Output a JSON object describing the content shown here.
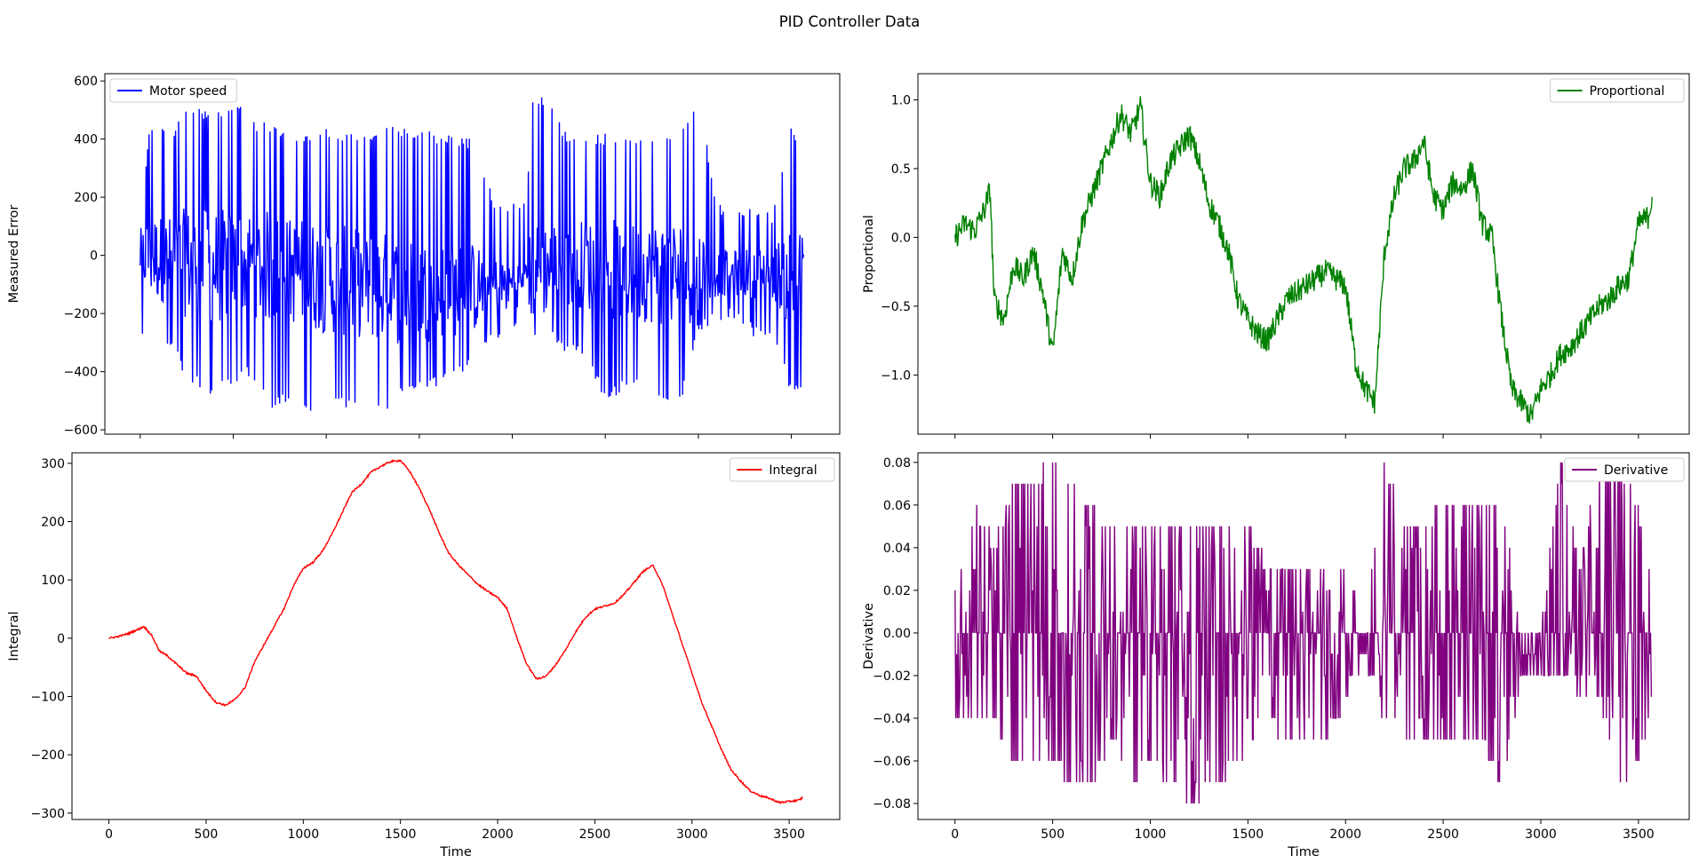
{
  "figure": {
    "title": "PID Controller Data"
  },
  "chart_data": [
    {
      "type": "line",
      "ylabel": "Measured Error",
      "xlabel": "",
      "xlim": [
        -190,
        3760
      ],
      "ylim": [
        -615,
        625
      ],
      "xticks": [
        0,
        500,
        1000,
        1500,
        2000,
        2500,
        3000,
        3500
      ],
      "yticks": [
        -600,
        -400,
        -200,
        0,
        200,
        400,
        600
      ],
      "show_x_tick_labels": false,
      "legend_position": "top-left",
      "series": [
        {
          "name": "Motor speed",
          "color": "#0000ff",
          "x": [
            0,
            50,
            100,
            180,
            250,
            300,
            400,
            500,
            600,
            700,
            800,
            900,
            1000,
            1100,
            1200,
            1300,
            1400,
            1500,
            1600,
            1700,
            1800,
            1900,
            2000,
            2080,
            2100,
            2200,
            2300,
            2400,
            2500,
            2600,
            2700,
            2800,
            2900,
            3000,
            3100,
            3200,
            3300,
            3400,
            3500,
            3570
          ],
          "y": [
            150,
            -300,
            440,
            -330,
            520,
            -450,
            -440,
            540,
            -380,
            -500,
            400,
            -500,
            430,
            -510,
            420,
            -520,
            430,
            -440,
            220,
            -300,
            210,
            -290,
            190,
            -60,
            560,
            80,
            -300,
            410,
            -350,
            420,
            -330,
            400,
            -240,
            -80,
            180,
            -220,
            160,
            -300,
            460,
            -180
          ],
          "env_high": [
            150,
            445,
            440,
            440,
            520,
            510,
            500,
            540,
            470,
            460,
            420,
            410,
            440,
            430,
            420,
            440,
            445,
            440,
            420,
            410,
            400,
            190,
            190,
            180,
            560,
            540,
            410,
            410,
            420,
            420,
            420,
            420,
            420,
            560,
            180,
            175,
            160,
            150,
            470,
            300
          ],
          "env_low": [
            -300,
            -320,
            -320,
            -330,
            -450,
            -450,
            -490,
            -440,
            -420,
            -530,
            -500,
            -560,
            -500,
            -530,
            -510,
            -550,
            -490,
            -460,
            -450,
            -420,
            -380,
            -300,
            -290,
            -60,
            -280,
            -290,
            -340,
            -360,
            -500,
            -470,
            -420,
            -500,
            -520,
            -260,
            -230,
            -220,
            -280,
            -300,
            -480,
            -460
          ],
          "guide_band": [
            [
              0,
              0
            ],
            [
              200,
              -20
            ],
            [
              400,
              -40
            ],
            [
              600,
              -30
            ],
            [
              800,
              -50
            ],
            [
              1000,
              -80
            ],
            [
              1200,
              -100
            ],
            [
              1400,
              -120
            ],
            [
              1600,
              -120
            ],
            [
              1800,
              -110
            ],
            [
              2000,
              -100
            ],
            [
              2100,
              -60
            ],
            [
              2300,
              -20
            ],
            [
              2600,
              -60
            ],
            [
              2800,
              -60
            ],
            [
              3000,
              -60
            ],
            [
              3200,
              -60
            ],
            [
              3400,
              -60
            ],
            [
              3570,
              -80
            ]
          ]
        }
      ]
    },
    {
      "type": "line",
      "ylabel": "Proportional",
      "xlabel": "",
      "xlim": [
        -190,
        3760
      ],
      "ylim": [
        -1.43,
        1.19
      ],
      "xticks": [
        0,
        500,
        1000,
        1500,
        2000,
        2500,
        3000,
        3500
      ],
      "yticks": [
        -1.0,
        -0.5,
        0.0,
        0.5,
        1.0
      ],
      "ytick_labels": [
        "−1.0",
        "−0.5",
        "0.0",
        "0.5",
        "1.0"
      ],
      "show_x_tick_labels": false,
      "legend_position": "top-right",
      "series": [
        {
          "name": "Proportional",
          "color": "#008000",
          "x": [
            0,
            50,
            100,
            150,
            180,
            200,
            250,
            300,
            350,
            400,
            450,
            500,
            550,
            600,
            650,
            700,
            750,
            800,
            850,
            900,
            950,
            1000,
            1050,
            1100,
            1150,
            1200,
            1250,
            1300,
            1350,
            1400,
            1450,
            1500,
            1550,
            1600,
            1650,
            1700,
            1750,
            1800,
            1850,
            1900,
            1950,
            2000,
            2050,
            2100,
            2150,
            2200,
            2250,
            2300,
            2350,
            2400,
            2450,
            2500,
            2550,
            2600,
            2650,
            2700,
            2750,
            2800,
            2850,
            2900,
            2950,
            3000,
            3050,
            3100,
            3150,
            3200,
            3250,
            3300,
            3350,
            3400,
            3450,
            3500,
            3550,
            3570
          ],
          "y": [
            0.0,
            0.1,
            0.05,
            0.2,
            0.35,
            -0.45,
            -0.6,
            -0.2,
            -0.3,
            -0.1,
            -0.4,
            -0.85,
            -0.1,
            -0.3,
            0.1,
            0.3,
            0.5,
            0.7,
            0.9,
            0.75,
            0.95,
            0.4,
            0.3,
            0.55,
            0.65,
            0.75,
            0.55,
            0.25,
            0.1,
            -0.1,
            -0.45,
            -0.6,
            -0.7,
            -0.75,
            -0.6,
            -0.45,
            -0.4,
            -0.35,
            -0.3,
            -0.25,
            -0.3,
            -0.35,
            -0.9,
            -1.1,
            -1.2,
            -0.1,
            0.3,
            0.5,
            0.55,
            0.7,
            0.3,
            0.2,
            0.4,
            0.35,
            0.5,
            0.1,
            0.0,
            -0.6,
            -1.1,
            -1.2,
            -1.3,
            -1.1,
            -1.0,
            -0.85,
            -0.8,
            -0.7,
            -0.6,
            -0.5,
            -0.45,
            -0.35,
            -0.3,
            0.1,
            0.15,
            0.3
          ],
          "noise": 0.09
        }
      ]
    },
    {
      "type": "line",
      "ylabel": "Integral",
      "xlabel": "Time",
      "xlim": [
        -190,
        3760
      ],
      "ylim": [
        -311,
        318
      ],
      "xticks": [
        0,
        500,
        1000,
        1500,
        2000,
        2500,
        3000,
        3500
      ],
      "yticks": [
        -300,
        -200,
        -100,
        0,
        100,
        200,
        300
      ],
      "ytick_labels": [
        "−300",
        "−200",
        "−100",
        "0",
        "100",
        "200",
        "300"
      ],
      "show_x_tick_labels": true,
      "legend_position": "top-right",
      "series": [
        {
          "name": "Integral",
          "color": "#ff0000",
          "x": [
            0,
            50,
            100,
            150,
            180,
            220,
            260,
            300,
            350,
            400,
            450,
            500,
            550,
            600,
            650,
            700,
            750,
            800,
            850,
            900,
            950,
            1000,
            1050,
            1100,
            1150,
            1200,
            1250,
            1300,
            1350,
            1400,
            1450,
            1500,
            1550,
            1600,
            1650,
            1700,
            1750,
            1800,
            1850,
            1900,
            1950,
            2000,
            2050,
            2100,
            2150,
            2200,
            2250,
            2300,
            2350,
            2400,
            2450,
            2500,
            2550,
            2600,
            2650,
            2700,
            2750,
            2800,
            2850,
            2900,
            2950,
            3000,
            3050,
            3100,
            3150,
            3200,
            3250,
            3300,
            3350,
            3400,
            3450,
            3500,
            3550,
            3570
          ],
          "y": [
            0,
            3,
            8,
            15,
            20,
            5,
            -22,
            -30,
            -45,
            -60,
            -65,
            -90,
            -110,
            -115,
            -105,
            -85,
            -40,
            -10,
            20,
            50,
            90,
            120,
            130,
            150,
            180,
            215,
            250,
            265,
            285,
            295,
            303,
            305,
            285,
            255,
            220,
            180,
            145,
            125,
            108,
            92,
            80,
            70,
            50,
            0,
            -45,
            -70,
            -65,
            -45,
            -20,
            10,
            35,
            50,
            55,
            60,
            75,
            95,
            115,
            125,
            90,
            40,
            -10,
            -60,
            -110,
            -150,
            -190,
            -225,
            -245,
            -262,
            -270,
            -275,
            -282,
            -280,
            -278,
            -273
          ],
          "noise": 1.5
        }
      ]
    },
    {
      "type": "line",
      "ylabel": "Derivative",
      "xlabel": "Time",
      "xlim": [
        -190,
        3760
      ],
      "ylim": [
        -0.0875,
        0.0845
      ],
      "xticks": [
        0,
        500,
        1000,
        1500,
        2000,
        2500,
        3000,
        3500
      ],
      "yticks": [
        -0.08,
        -0.06,
        -0.04,
        -0.02,
        0.0,
        0.02,
        0.04,
        0.06,
        0.08
      ],
      "ytick_labels": [
        "−0.08",
        "−0.06",
        "−0.04",
        "−0.02",
        "0.00",
        "0.02",
        "0.04",
        "0.06",
        "0.08"
      ],
      "show_x_tick_labels": true,
      "legend_position": "top-right",
      "series": [
        {
          "name": "Derivative",
          "color": "#800080",
          "x": [
            0,
            100,
            200,
            300,
            400,
            500,
            600,
            700,
            800,
            900,
            1000,
            1100,
            1200,
            1300,
            1400,
            1500,
            1600,
            1700,
            1800,
            1900,
            2000,
            2100,
            2200,
            2300,
            2400,
            2500,
            2600,
            2700,
            2800,
            2900,
            3000,
            3100,
            3200,
            3300,
            3400,
            3500,
            3570
          ],
          "y": [
            0.0,
            0.06,
            -0.04,
            0.07,
            -0.06,
            0.08,
            -0.07,
            0.06,
            -0.05,
            0.05,
            -0.06,
            0.05,
            -0.08,
            0.05,
            -0.07,
            0.05,
            -0.04,
            0.03,
            -0.05,
            0.03,
            -0.03,
            0.0,
            0.08,
            -0.04,
            0.05,
            -0.05,
            0.06,
            -0.05,
            0.06,
            -0.02,
            0.0,
            0.08,
            -0.03,
            0.06,
            -0.04,
            0.06,
            0.02
          ],
          "env_high": [
            0.02,
            0.06,
            0.04,
            0.07,
            0.07,
            0.08,
            0.07,
            0.06,
            0.05,
            0.05,
            0.05,
            0.05,
            0.05,
            0.05,
            0.05,
            0.05,
            0.03,
            0.03,
            0.03,
            0.03,
            0.03,
            0.0,
            0.08,
            0.05,
            0.05,
            0.06,
            0.06,
            0.06,
            0.06,
            0.0,
            0.0,
            0.08,
            0.03,
            0.08,
            0.08,
            0.06,
            0.02
          ],
          "env_low": [
            -0.04,
            -0.04,
            -0.04,
            -0.06,
            -0.06,
            -0.06,
            -0.07,
            -0.07,
            -0.05,
            -0.07,
            -0.06,
            -0.07,
            -0.08,
            -0.07,
            -0.07,
            -0.05,
            -0.04,
            -0.05,
            -0.05,
            -0.05,
            -0.03,
            -0.01,
            -0.04,
            -0.05,
            -0.05,
            -0.05,
            -0.05,
            -0.05,
            -0.07,
            -0.02,
            -0.02,
            -0.02,
            -0.03,
            -0.03,
            -0.07,
            -0.06,
            -0.03
          ],
          "quant": 0.01
        }
      ]
    }
  ]
}
